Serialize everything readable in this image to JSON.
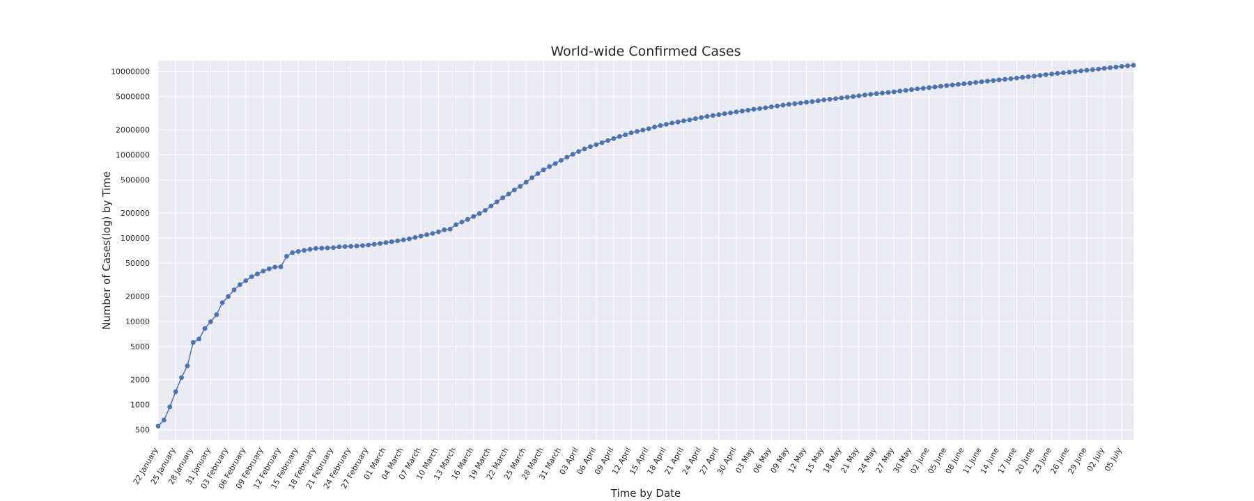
{
  "chart_data": {
    "type": "line",
    "title": "World-wide Confirmed Cases",
    "xlabel": "Time by Date",
    "ylabel": "Number of Cases(log) by Time",
    "y_scale": "log",
    "ylim": [
      380,
      13500000
    ],
    "grid": true,
    "colors": {
      "background": "#eaeaf2",
      "grid": "#ffffff",
      "line": "#4c72b0",
      "marker": "#4c72b0",
      "text": "#262626"
    },
    "y_ticks": [
      {
        "value": 500,
        "label": "500"
      },
      {
        "value": 1000,
        "label": "1000"
      },
      {
        "value": 2000,
        "label": "2000"
      },
      {
        "value": 5000,
        "label": "5000"
      },
      {
        "value": 10000,
        "label": "10000"
      },
      {
        "value": 20000,
        "label": "20000"
      },
      {
        "value": 50000,
        "label": "50000"
      },
      {
        "value": 100000,
        "label": "100000"
      },
      {
        "value": 200000,
        "label": "200000"
      },
      {
        "value": 500000,
        "label": "500000"
      },
      {
        "value": 1000000,
        "label": "1000000"
      },
      {
        "value": 2000000,
        "label": "2000000"
      },
      {
        "value": 5000000,
        "label": "5000000"
      },
      {
        "value": 10000000,
        "label": "10000000"
      }
    ],
    "x_ticks": [
      "22 January",
      "25 January",
      "28 January",
      "31 January",
      "03 February",
      "06 February",
      "09 February",
      "12 February",
      "15 February",
      "18 February",
      "21 February",
      "24 February",
      "27 February",
      "01 March",
      "04 March",
      "07 March",
      "10 March",
      "13 March",
      "16 March",
      "19 March",
      "22 March",
      "25 March",
      "28 March",
      "31 March",
      "03 April",
      "06 April",
      "09 April",
      "12 April",
      "15 April",
      "18 April",
      "21 April",
      "24 April",
      "27 April",
      "30 April",
      "03 May",
      "06 May",
      "09 May",
      "12 May",
      "15 May",
      "18 May",
      "21 May",
      "24 May",
      "27 May",
      "30 May",
      "02 June",
      "05 June",
      "08 June",
      "11 June",
      "14 June",
      "17 June",
      "20 June",
      "23 June",
      "26 June",
      "29 June",
      "02 July",
      "05 July"
    ],
    "series": [
      {
        "x_start": "22 January",
        "x_end": "05 July",
        "step": "1 day",
        "values": [
          555,
          654,
          941,
          1434,
          2118,
          2927,
          5578,
          6166,
          8234,
          9927,
          12038,
          16787,
          19881,
          23892,
          27635,
          30794,
          34391,
          37120,
          40150,
          42762,
          44802,
          45221,
          60368,
          66885,
          69030,
          71224,
          73258,
          75136,
          75639,
          76197,
          76819,
          78572,
          78958,
          79561,
          80406,
          81388,
          82746,
          84112,
          86011,
          88369,
          90306,
          92840,
          95120,
          97886,
          101801,
          105847,
          109821,
          113590,
          118582,
          125865,
          128343,
          145193,
          156097,
          167449,
          181546,
          197168,
          214915,
          242713,
          272167,
          304528,
          336953,
          378235,
          418045,
          467653,
          529591,
          593291,
          660706,
          720117,
          782365,
          857487,
          932605,
          1013157,
          1095917,
          1176060,
          1249754,
          1321481,
          1396476,
          1480202,
          1565278,
          1657526,
          1735650,
          1834721,
          1904838,
          1976191,
          2056054,
          2152437,
          2240190,
          2317758,
          2401378,
          2472259,
          2549123,
          2624611,
          2708885,
          2795729,
          2881140,
          2954222,
          3032576,
          3108149,
          3183946,
          3267339,
          3344994,
          3427588,
          3506729,
          3583055,
          3662691,
          3755341,
          3845718,
          3938064,
          4024009,
          4101699,
          4177502,
          4261747,
          4347018,
          4442163,
          4542347,
          4634068,
          4713620,
          4801943,
          4897492,
          4996472,
          5102424,
          5210817,
          5310362,
          5407613,
          5495061,
          5589626,
          5691790,
          5808946,
          5924275,
          6059017,
          6166946,
          6265852,
          6386349,
          6508635,
          6632985,
          6764003,
          6886653,
          6990924,
          7108200,
          7232919,
          7375221,
          7503362,
          7638163,
          7778069,
          7910300,
          8044500,
          8183200,
          8330400,
          8486200,
          8637000,
          8779100,
          8957200,
          9131000,
          9310600,
          9467700,
          9615000,
          9786600,
          9958900,
          10147000,
          10325300,
          10501200,
          10673000,
          10876000,
          11074000,
          11285000,
          11480000,
          11670000,
          11860000
        ]
      }
    ]
  }
}
